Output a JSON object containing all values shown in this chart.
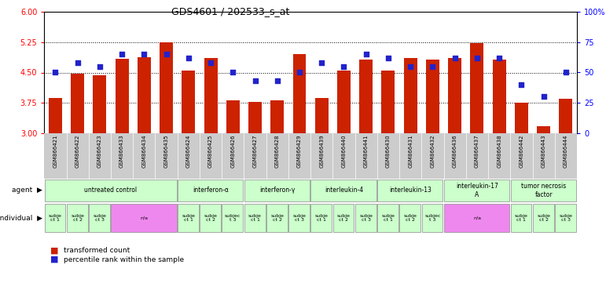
{
  "title": "GDS4601 / 202533_s_at",
  "samples": [
    "GSM866421",
    "GSM866422",
    "GSM866423",
    "GSM866433",
    "GSM866434",
    "GSM866435",
    "GSM866424",
    "GSM866425",
    "GSM866426",
    "GSM866427",
    "GSM866428",
    "GSM866429",
    "GSM866439",
    "GSM866440",
    "GSM866441",
    "GSM866430",
    "GSM866431",
    "GSM866432",
    "GSM866436",
    "GSM866437",
    "GSM866438",
    "GSM866442",
    "GSM866443",
    "GSM866444"
  ],
  "bar_values": [
    3.88,
    4.47,
    4.43,
    4.83,
    4.88,
    5.25,
    4.55,
    4.85,
    3.82,
    3.77,
    3.82,
    4.95,
    3.87,
    4.55,
    4.82,
    4.55,
    4.85,
    4.82,
    4.85,
    5.22,
    4.82,
    3.75,
    3.18,
    3.85
  ],
  "dot_values": [
    50,
    58,
    55,
    65,
    65,
    65,
    62,
    58,
    50,
    43,
    43,
    50,
    58,
    55,
    65,
    62,
    55,
    55,
    62,
    62,
    62,
    40,
    30,
    50
  ],
  "ylim_left": [
    3,
    6
  ],
  "ylim_right": [
    0,
    100
  ],
  "yticks_left": [
    3,
    3.75,
    4.5,
    5.25,
    6
  ],
  "yticks_right": [
    0,
    25,
    50,
    75,
    100
  ],
  "ytick_labels_right": [
    "0",
    "25",
    "50",
    "75",
    "100%"
  ],
  "bar_color": "#cc2200",
  "dot_color": "#2222cc",
  "bg_color": "#ffffff",
  "xtick_bg": "#cccccc",
  "agent_color": "#ccffcc",
  "na_color": "#ee88ee",
  "agent_groups": [
    {
      "label": "untreated control",
      "start": 0,
      "end": 5
    },
    {
      "label": "interferon-α",
      "start": 6,
      "end": 8
    },
    {
      "label": "interferon-γ",
      "start": 9,
      "end": 11
    },
    {
      "label": "interleukin-4",
      "start": 12,
      "end": 14
    },
    {
      "label": "interleukin-13",
      "start": 15,
      "end": 17
    },
    {
      "label": "interleukin-17\nA",
      "start": 18,
      "end": 20
    },
    {
      "label": "tumor necrosis\nfactor",
      "start": 21,
      "end": 23
    }
  ],
  "individual_groups": [
    {
      "label": "subje\nct 1",
      "start": 0,
      "end": 0,
      "na": false
    },
    {
      "label": "subje\nct 2",
      "start": 1,
      "end": 1,
      "na": false
    },
    {
      "label": "subje\nct 3",
      "start": 2,
      "end": 2,
      "na": false
    },
    {
      "label": "n/a",
      "start": 3,
      "end": 5,
      "na": true
    },
    {
      "label": "subje\nct 1",
      "start": 6,
      "end": 6,
      "na": false
    },
    {
      "label": "subje\nct 2",
      "start": 7,
      "end": 7,
      "na": false
    },
    {
      "label": "subjec\nt 3",
      "start": 8,
      "end": 8,
      "na": false
    },
    {
      "label": "subje\nct 1",
      "start": 9,
      "end": 9,
      "na": false
    },
    {
      "label": "subje\nct 2",
      "start": 10,
      "end": 10,
      "na": false
    },
    {
      "label": "subje\nct 3",
      "start": 11,
      "end": 11,
      "na": false
    },
    {
      "label": "subje\nct 1",
      "start": 12,
      "end": 12,
      "na": false
    },
    {
      "label": "subje\nct 2",
      "start": 13,
      "end": 13,
      "na": false
    },
    {
      "label": "subje\nct 3",
      "start": 14,
      "end": 14,
      "na": false
    },
    {
      "label": "subje\nct 1",
      "start": 15,
      "end": 15,
      "na": false
    },
    {
      "label": "subje\nct 2",
      "start": 16,
      "end": 16,
      "na": false
    },
    {
      "label": "subjec\nt 3",
      "start": 17,
      "end": 17,
      "na": false
    },
    {
      "label": "n/a",
      "start": 18,
      "end": 20,
      "na": true
    },
    {
      "label": "subje\nct 1",
      "start": 21,
      "end": 21,
      "na": false
    },
    {
      "label": "subje\nct 2",
      "start": 22,
      "end": 22,
      "na": false
    },
    {
      "label": "subje\nct 3",
      "start": 23,
      "end": 23,
      "na": false
    }
  ]
}
